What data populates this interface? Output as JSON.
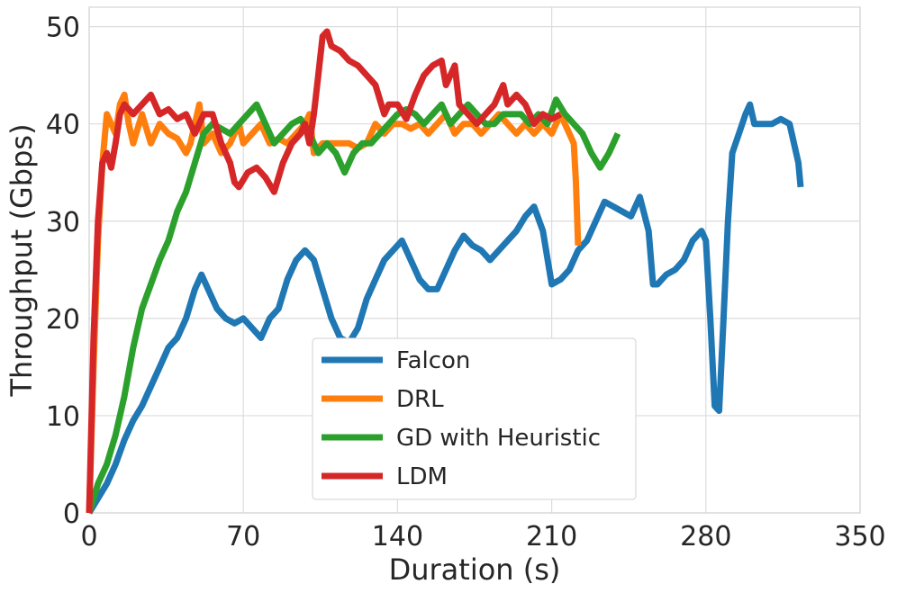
{
  "chart_data": {
    "type": "line",
    "title": "",
    "xlabel": "Duration (s)",
    "ylabel": "Throughput (Gbps)",
    "xlim": [
      0,
      350
    ],
    "ylim": [
      0,
      52
    ],
    "xticks": [
      0,
      70,
      140,
      210,
      280,
      350
    ],
    "yticks": [
      0,
      10,
      20,
      30,
      40,
      50
    ],
    "grid": true,
    "legend_position": "lower-center",
    "series": [
      {
        "name": "Falcon",
        "color": "#1f77b4",
        "points": [
          [
            0,
            0
          ],
          [
            4,
            1.5
          ],
          [
            8,
            3
          ],
          [
            12,
            5
          ],
          [
            16,
            7.5
          ],
          [
            20,
            9.5
          ],
          [
            24,
            11
          ],
          [
            28,
            13
          ],
          [
            32,
            15
          ],
          [
            36,
            17
          ],
          [
            40,
            18
          ],
          [
            44,
            20
          ],
          [
            48,
            23
          ],
          [
            51,
            24.5
          ],
          [
            54,
            23
          ],
          [
            58,
            21
          ],
          [
            62,
            20
          ],
          [
            66,
            19.5
          ],
          [
            70,
            20
          ],
          [
            74,
            19
          ],
          [
            78,
            18
          ],
          [
            82,
            20
          ],
          [
            86,
            21
          ],
          [
            90,
            24
          ],
          [
            94,
            26
          ],
          [
            98,
            27
          ],
          [
            102,
            26
          ],
          [
            106,
            23
          ],
          [
            110,
            20
          ],
          [
            114,
            18
          ],
          [
            118,
            17.5
          ],
          [
            122,
            19
          ],
          [
            126,
            22
          ],
          [
            130,
            24
          ],
          [
            134,
            26
          ],
          [
            138,
            27
          ],
          [
            142,
            28
          ],
          [
            146,
            26
          ],
          [
            150,
            24
          ],
          [
            154,
            23
          ],
          [
            158,
            23
          ],
          [
            162,
            25
          ],
          [
            166,
            27
          ],
          [
            170,
            28.5
          ],
          [
            174,
            27.5
          ],
          [
            178,
            27
          ],
          [
            182,
            26
          ],
          [
            186,
            27
          ],
          [
            190,
            28
          ],
          [
            194,
            29
          ],
          [
            198,
            30.5
          ],
          [
            202,
            31.5
          ],
          [
            206,
            29
          ],
          [
            210,
            23.5
          ],
          [
            214,
            24
          ],
          [
            218,
            25
          ],
          [
            222,
            27
          ],
          [
            226,
            28
          ],
          [
            230,
            30
          ],
          [
            234,
            32
          ],
          [
            238,
            31.5
          ],
          [
            242,
            31
          ],
          [
            246,
            30.5
          ],
          [
            250,
            32.5
          ],
          [
            254,
            29
          ],
          [
            256,
            23.5
          ],
          [
            258,
            23.5
          ],
          [
            262,
            24.5
          ],
          [
            266,
            25
          ],
          [
            270,
            26
          ],
          [
            274,
            28
          ],
          [
            278,
            29
          ],
          [
            280,
            28
          ],
          [
            282,
            20
          ],
          [
            284,
            11
          ],
          [
            286,
            10.5
          ],
          [
            288,
            20
          ],
          [
            290,
            30
          ],
          [
            292,
            37
          ],
          [
            295,
            39
          ],
          [
            298,
            41
          ],
          [
            300,
            42
          ],
          [
            302,
            40
          ],
          [
            306,
            40
          ],
          [
            310,
            40
          ],
          [
            314,
            40.5
          ],
          [
            318,
            40
          ],
          [
            320,
            38
          ],
          [
            322,
            36
          ],
          [
            323,
            33.5
          ]
        ]
      },
      {
        "name": "DRL",
        "color": "#ff7f0e",
        "points": [
          [
            0,
            0
          ],
          [
            2,
            15
          ],
          [
            4,
            28
          ],
          [
            6,
            36
          ],
          [
            8,
            41
          ],
          [
            10,
            40
          ],
          [
            12,
            39
          ],
          [
            14,
            42
          ],
          [
            16,
            43
          ],
          [
            18,
            40
          ],
          [
            20,
            38
          ],
          [
            24,
            41
          ],
          [
            28,
            38
          ],
          [
            32,
            40
          ],
          [
            36,
            39
          ],
          [
            40,
            38.5
          ],
          [
            44,
            37
          ],
          [
            46,
            38
          ],
          [
            48,
            40
          ],
          [
            50,
            42
          ],
          [
            52,
            38
          ],
          [
            56,
            39
          ],
          [
            60,
            37
          ],
          [
            64,
            38
          ],
          [
            68,
            40
          ],
          [
            70,
            38
          ],
          [
            74,
            39
          ],
          [
            78,
            40
          ],
          [
            82,
            38
          ],
          [
            86,
            38.5
          ],
          [
            90,
            38
          ],
          [
            94,
            39
          ],
          [
            98,
            40
          ],
          [
            100,
            41
          ],
          [
            102,
            37
          ],
          [
            106,
            38
          ],
          [
            110,
            38
          ],
          [
            114,
            38
          ],
          [
            118,
            38
          ],
          [
            122,
            37.5
          ],
          [
            126,
            38
          ],
          [
            130,
            40
          ],
          [
            134,
            39
          ],
          [
            138,
            40
          ],
          [
            142,
            40
          ],
          [
            146,
            39.5
          ],
          [
            150,
            40
          ],
          [
            154,
            39
          ],
          [
            158,
            40
          ],
          [
            162,
            41
          ],
          [
            166,
            39
          ],
          [
            170,
            40
          ],
          [
            174,
            40
          ],
          [
            178,
            39
          ],
          [
            182,
            40
          ],
          [
            186,
            41
          ],
          [
            190,
            40
          ],
          [
            194,
            39
          ],
          [
            198,
            40
          ],
          [
            202,
            39
          ],
          [
            206,
            40
          ],
          [
            210,
            39
          ],
          [
            214,
            41
          ],
          [
            218,
            39
          ],
          [
            220,
            38
          ],
          [
            221,
            34
          ],
          [
            222,
            27.5
          ]
        ]
      },
      {
        "name": "GD with Heuristic",
        "color": "#2ca02c",
        "points": [
          [
            0,
            0
          ],
          [
            4,
            3
          ],
          [
            8,
            5
          ],
          [
            12,
            8
          ],
          [
            16,
            12
          ],
          [
            20,
            17
          ],
          [
            24,
            21
          ],
          [
            28,
            23.5
          ],
          [
            32,
            26
          ],
          [
            36,
            28
          ],
          [
            40,
            31
          ],
          [
            44,
            33
          ],
          [
            48,
            36
          ],
          [
            52,
            39
          ],
          [
            56,
            40
          ],
          [
            60,
            39.5
          ],
          [
            64,
            39
          ],
          [
            68,
            40
          ],
          [
            72,
            41
          ],
          [
            76,
            42
          ],
          [
            80,
            40
          ],
          [
            84,
            38
          ],
          [
            88,
            39
          ],
          [
            92,
            40
          ],
          [
            96,
            40.5
          ],
          [
            100,
            39
          ],
          [
            104,
            37
          ],
          [
            108,
            38
          ],
          [
            112,
            37
          ],
          [
            116,
            35
          ],
          [
            120,
            37
          ],
          [
            124,
            38
          ],
          [
            128,
            38
          ],
          [
            132,
            39
          ],
          [
            136,
            40
          ],
          [
            140,
            41
          ],
          [
            144,
            41.5
          ],
          [
            148,
            41
          ],
          [
            152,
            40
          ],
          [
            156,
            41
          ],
          [
            160,
            42
          ],
          [
            164,
            40
          ],
          [
            168,
            41
          ],
          [
            172,
            42
          ],
          [
            176,
            41
          ],
          [
            180,
            40
          ],
          [
            184,
            40
          ],
          [
            188,
            41
          ],
          [
            192,
            41
          ],
          [
            196,
            41
          ],
          [
            200,
            40
          ],
          [
            204,
            41
          ],
          [
            208,
            40
          ],
          [
            212,
            42.5
          ],
          [
            216,
            41
          ],
          [
            220,
            40
          ],
          [
            224,
            39
          ],
          [
            228,
            37
          ],
          [
            232,
            35.5
          ],
          [
            236,
            37
          ],
          [
            240,
            39
          ]
        ]
      },
      {
        "name": "LDM",
        "color": "#d62728",
        "points": [
          [
            0,
            0
          ],
          [
            2,
            18
          ],
          [
            4,
            30
          ],
          [
            6,
            36
          ],
          [
            8,
            37
          ],
          [
            10,
            35.5
          ],
          [
            12,
            38
          ],
          [
            14,
            41
          ],
          [
            16,
            42
          ],
          [
            20,
            41
          ],
          [
            24,
            42
          ],
          [
            28,
            43
          ],
          [
            32,
            41
          ],
          [
            36,
            41.5
          ],
          [
            40,
            40.5
          ],
          [
            44,
            41
          ],
          [
            48,
            39
          ],
          [
            52,
            41
          ],
          [
            56,
            41
          ],
          [
            60,
            38
          ],
          [
            64,
            36
          ],
          [
            66,
            34
          ],
          [
            68,
            33.5
          ],
          [
            72,
            35
          ],
          [
            76,
            35.5
          ],
          [
            80,
            34.5
          ],
          [
            84,
            33
          ],
          [
            88,
            36
          ],
          [
            92,
            38
          ],
          [
            96,
            39
          ],
          [
            98,
            40
          ],
          [
            100,
            38
          ],
          [
            102,
            41
          ],
          [
            104,
            45
          ],
          [
            106,
            49
          ],
          [
            108,
            49.5
          ],
          [
            110,
            48
          ],
          [
            114,
            47.5
          ],
          [
            118,
            46.5
          ],
          [
            122,
            46
          ],
          [
            126,
            45
          ],
          [
            130,
            44
          ],
          [
            134,
            41
          ],
          [
            136,
            42
          ],
          [
            140,
            42
          ],
          [
            144,
            40.5
          ],
          [
            148,
            43
          ],
          [
            152,
            45
          ],
          [
            156,
            46
          ],
          [
            160,
            46.5
          ],
          [
            162,
            44
          ],
          [
            164,
            45
          ],
          [
            166,
            46
          ],
          [
            168,
            42
          ],
          [
            172,
            41
          ],
          [
            176,
            40
          ],
          [
            180,
            41
          ],
          [
            184,
            42
          ],
          [
            186,
            43
          ],
          [
            188,
            44
          ],
          [
            190,
            42
          ],
          [
            194,
            43
          ],
          [
            198,
            42
          ],
          [
            202,
            40
          ],
          [
            206,
            41
          ],
          [
            210,
            40.5
          ],
          [
            214,
            41
          ]
        ]
      }
    ]
  }
}
